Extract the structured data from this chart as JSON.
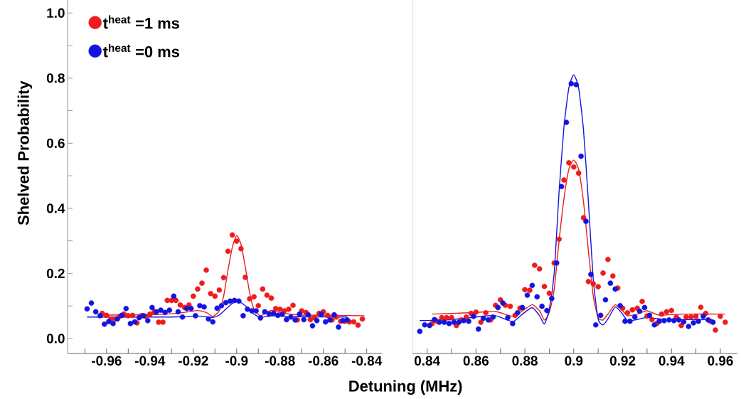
{
  "chart_data": [
    {
      "type": "scatter",
      "xlabel": "Detuning (MHz)",
      "ylabel": "Shelved Probability",
      "legend": "top left",
      "marker": "circle",
      "xlim": [
        -0.978,
        -0.833
      ],
      "ylim": [
        -0.046,
        1.04
      ],
      "xticks": [
        {
          "value": -0.97,
          "label": null
        },
        -0.96,
        {
          "value": -0.95,
          "label": null
        },
        -0.94,
        {
          "value": -0.93,
          "label": null
        },
        -0.92,
        {
          "value": -0.91,
          "label": null
        },
        -0.9,
        {
          "value": -0.89,
          "label": null
        },
        -0.88,
        {
          "value": -0.87,
          "label": null
        },
        -0.86,
        {
          "value": -0.85,
          "label": null
        },
        -0.84
      ],
      "yticks": [
        {
          "value": 0,
          "label": "0.0"
        },
        {
          "value": 0.1,
          "label": null
        },
        {
          "value": 0.2,
          "label": "0.2"
        },
        {
          "value": 0.3,
          "label": null
        },
        {
          "value": 0.4,
          "label": "0.4"
        },
        {
          "value": 0.5,
          "label": null
        },
        {
          "value": 0.6,
          "label": "0.6"
        },
        {
          "value": 0.7,
          "label": null
        },
        {
          "value": 0.8,
          "label": "0.8"
        },
        {
          "value": 0.9,
          "label": null
        },
        {
          "value": 1,
          "label": "1.0"
        }
      ],
      "series": [
        {
          "name": "t$^{heat}$ =1 ms",
          "color": "#ee1c1c",
          "x": [
            -0.962,
            -0.96,
            -0.958,
            -0.956,
            -0.954,
            -0.952,
            -0.95,
            -0.948,
            -0.946,
            -0.944,
            -0.942,
            -0.94,
            -0.938,
            -0.936,
            -0.934,
            -0.932,
            -0.93,
            -0.928,
            -0.926,
            -0.924,
            -0.922,
            -0.92,
            -0.918,
            -0.916,
            -0.914,
            -0.912,
            -0.91,
            -0.908,
            -0.906,
            -0.904,
            -0.902,
            -0.9,
            -0.898,
            -0.896,
            -0.894,
            -0.892,
            -0.89,
            -0.888,
            -0.886,
            -0.884,
            -0.882,
            -0.88,
            -0.878,
            -0.876,
            -0.874,
            -0.872,
            -0.87,
            -0.868,
            -0.866,
            -0.864,
            -0.862,
            -0.86,
            -0.858,
            -0.856,
            -0.854,
            -0.852,
            -0.85,
            -0.848,
            -0.846,
            -0.844,
            -0.842
          ],
          "values": [
            0.077,
            0.071,
            0.06,
            0.06,
            0.068,
            0.075,
            0.07,
            0.071,
            0.048,
            0.07,
            0.068,
            0.075,
            0.082,
            0.05,
            0.05,
            0.117,
            0.117,
            0.117,
            0.103,
            0.095,
            0.103,
            0.13,
            0.152,
            0.17,
            0.21,
            0.138,
            0.13,
            0.149,
            0.187,
            0.268,
            0.318,
            0.299,
            0.276,
            0.188,
            0.122,
            0.128,
            0.101,
            0.152,
            0.133,
            0.124,
            0.092,
            0.09,
            0.085,
            0.09,
            0.102,
            0.057,
            0.085,
            0.08,
            0.058,
            0.064,
            0.077,
            0.082,
            0.071,
            0.057,
            0.066,
            0.053,
            0.053,
            0.051,
            0.051,
            0.041,
            0.06
          ]
        },
        {
          "name": "t$^{heat}$ =0 ms",
          "color": "#1414e0",
          "x": [
            -0.969,
            -0.967,
            -0.965,
            -0.963,
            -0.961,
            -0.959,
            -0.957,
            -0.955,
            -0.953,
            -0.951,
            -0.949,
            -0.947,
            -0.945,
            -0.943,
            -0.941,
            -0.939,
            -0.937,
            -0.935,
            -0.933,
            -0.931,
            -0.929,
            -0.927,
            -0.925,
            -0.923,
            -0.921,
            -0.919,
            -0.917,
            -0.915,
            -0.913,
            -0.911,
            -0.909,
            -0.907,
            -0.905,
            -0.903,
            -0.901,
            -0.899,
            -0.897,
            -0.895,
            -0.893,
            -0.891,
            -0.889,
            -0.887,
            -0.885,
            -0.883,
            -0.881,
            -0.879,
            -0.877,
            -0.875,
            -0.873,
            -0.871,
            -0.869,
            -0.867,
            -0.865,
            -0.863,
            -0.861,
            -0.859,
            -0.857,
            -0.855,
            -0.853,
            -0.851,
            -0.849
          ],
          "values": [
            0.091,
            0.109,
            0.082,
            0.07,
            0.044,
            0.052,
            0.046,
            0.06,
            0.071,
            0.092,
            0.046,
            0.051,
            0.064,
            0.07,
            0.055,
            0.095,
            0.082,
            0.087,
            0.08,
            0.087,
            0.13,
            0.082,
            0.066,
            0.092,
            0.092,
            0.07,
            0.101,
            0.097,
            0.06,
            0.051,
            0.093,
            0.101,
            0.11,
            0.115,
            0.117,
            0.115,
            0.07,
            0.09,
            0.085,
            0.085,
            0.063,
            0.082,
            0.075,
            0.077,
            0.071,
            0.074,
            0.058,
            0.066,
            0.057,
            0.075,
            0.058,
            0.073,
            0.039,
            0.055,
            0.075,
            0.051,
            0.057,
            0.073,
            0.035,
            0.055,
            0.057
          ]
        },
        {
          "type": "line",
          "marker": "none",
          "color": "#ee1c1c",
          "x": [
            -0.962,
            -0.94,
            -0.93,
            -0.922,
            -0.918,
            -0.914,
            -0.911,
            -0.908,
            -0.906,
            -0.904,
            -0.902,
            -0.9,
            -0.898,
            -0.896,
            -0.894,
            -0.892,
            -0.889,
            -0.886,
            -0.883,
            -0.879,
            -0.87,
            -0.841
          ],
          "values": [
            0.072,
            0.073,
            0.076,
            0.082,
            0.086,
            0.08,
            0.068,
            0.085,
            0.13,
            0.21,
            0.28,
            0.316,
            0.29,
            0.22,
            0.14,
            0.09,
            0.07,
            0.082,
            0.086,
            0.078,
            0.072,
            0.07
          ]
        },
        {
          "type": "line",
          "marker": "none",
          "color": "#1414e0",
          "x": [
            -0.969,
            -0.93,
            -0.918,
            -0.911,
            -0.908,
            -0.905,
            -0.902,
            -0.9,
            -0.898,
            -0.895,
            -0.892,
            -0.889,
            -0.882,
            -0.875,
            -0.849
          ],
          "values": [
            0.066,
            0.066,
            0.069,
            0.065,
            0.072,
            0.09,
            0.108,
            0.113,
            0.11,
            0.095,
            0.075,
            0.066,
            0.07,
            0.067,
            0.066
          ]
        }
      ]
    },
    {
      "type": "scatter",
      "tick_labels": "x",
      "marker": "circle",
      "xlim": [
        0.834,
        0.967
      ],
      "ylim": [
        -0.046,
        1.04
      ],
      "xticks": [
        0.84,
        {
          "value": 0.85,
          "label": null
        },
        0.86,
        {
          "value": 0.87,
          "label": null
        },
        0.88,
        {
          "value": 0.89,
          "label": null
        },
        0.9,
        {
          "value": 0.91,
          "label": null
        },
        0.92,
        {
          "value": 0.93,
          "label": null
        },
        0.94,
        {
          "value": 0.95,
          "label": null
        },
        0.96
      ],
      "series": [
        {
          "color": "#ee1c1c",
          "x": [
            0.842,
            0.844,
            0.846,
            0.848,
            0.85,
            0.852,
            0.854,
            0.856,
            0.858,
            0.86,
            0.862,
            0.864,
            0.866,
            0.868,
            0.87,
            0.872,
            0.874,
            0.876,
            0.878,
            0.88,
            0.882,
            0.884,
            0.886,
            0.888,
            0.89,
            0.892,
            0.894,
            0.896,
            0.898,
            0.9,
            0.902,
            0.904,
            0.906,
            0.908,
            0.91,
            0.912,
            0.914,
            0.916,
            0.918,
            0.92,
            0.922,
            0.924,
            0.926,
            0.928,
            0.93,
            0.932,
            0.934,
            0.936,
            0.938,
            0.94,
            0.942,
            0.944,
            0.946,
            0.948,
            0.95,
            0.952,
            0.954,
            0.956,
            0.958,
            0.96,
            0.962
          ],
          "values": [
            0.046,
            0.053,
            0.064,
            0.064,
            0.064,
            0.04,
            0.057,
            0.066,
            0.077,
            0.081,
            0.05,
            0.079,
            0.057,
            0.102,
            0.119,
            0.102,
            0.099,
            0.071,
            0.093,
            0.15,
            0.148,
            0.225,
            0.214,
            0.16,
            0.139,
            0.232,
            0.305,
            0.487,
            0.54,
            0.527,
            0.508,
            0.371,
            0.175,
            0.168,
            0.159,
            0.201,
            0.243,
            0.192,
            0.155,
            0.093,
            0.079,
            0.088,
            0.093,
            0.114,
            0.069,
            0.058,
            0.046,
            0.075,
            0.082,
            0.086,
            0.066,
            0.04,
            0.066,
            0.066,
            0.068,
            0.096,
            0.077,
            0.053,
            0.026,
            0.068,
            0.05
          ]
        },
        {
          "color": "#1414e0",
          "x": [
            0.837,
            0.839,
            0.841,
            0.843,
            0.845,
            0.847,
            0.849,
            0.851,
            0.853,
            0.855,
            0.857,
            0.859,
            0.861,
            0.863,
            0.865,
            0.867,
            0.869,
            0.871,
            0.873,
            0.875,
            0.877,
            0.879,
            0.881,
            0.883,
            0.885,
            0.887,
            0.889,
            0.891,
            0.893,
            0.895,
            0.897,
            0.899,
            0.901,
            0.903,
            0.905,
            0.907,
            0.909,
            0.911,
            0.913,
            0.915,
            0.917,
            0.919,
            0.921,
            0.923,
            0.925,
            0.927,
            0.929,
            0.931,
            0.933,
            0.935,
            0.937,
            0.939,
            0.941,
            0.943,
            0.945,
            0.947,
            0.949,
            0.951,
            0.953,
            0.955,
            0.957
          ],
          "values": [
            0.022,
            0.042,
            0.04,
            0.058,
            0.05,
            0.05,
            0.046,
            0.05,
            0.05,
            0.055,
            0.053,
            0.068,
            0.029,
            0.062,
            0.057,
            0.066,
            0.095,
            0.109,
            0.064,
            0.046,
            0.079,
            0.095,
            0.133,
            0.163,
            0.128,
            0.099,
            0.086,
            0.123,
            0.232,
            0.467,
            0.664,
            0.783,
            0.78,
            0.56,
            0.36,
            0.197,
            0.042,
            0.071,
            0.119,
            0.17,
            0.152,
            0.101,
            0.053,
            0.053,
            0.066,
            0.084,
            0.095,
            0.071,
            0.042,
            0.053,
            0.055,
            0.057,
            0.055,
            0.057,
            0.051,
            0.037,
            0.048,
            0.053,
            0.068,
            0.057,
            0.05
          ]
        },
        {
          "type": "line",
          "marker": "none",
          "color": "#ee1c1c",
          "x": [
            0.842,
            0.85,
            0.86,
            0.868,
            0.875,
            0.879,
            0.883,
            0.886,
            0.888,
            0.89,
            0.892,
            0.894,
            0.896,
            0.898,
            0.9,
            0.902,
            0.904,
            0.906,
            0.908,
            0.91,
            0.912,
            0.914,
            0.917,
            0.92,
            0.922,
            0.926,
            0.93,
            0.935,
            0.945,
            0.962
          ],
          "values": [
            0.075,
            0.077,
            0.08,
            0.083,
            0.068,
            0.085,
            0.104,
            0.085,
            0.057,
            0.08,
            0.15,
            0.3,
            0.43,
            0.52,
            0.548,
            0.52,
            0.42,
            0.27,
            0.13,
            0.064,
            0.057,
            0.075,
            0.104,
            0.085,
            0.07,
            0.075,
            0.085,
            0.072,
            0.075,
            0.075
          ]
        },
        {
          "type": "line",
          "marker": "none",
          "color": "#1414e0",
          "x": [
            0.837,
            0.85,
            0.86,
            0.868,
            0.875,
            0.879,
            0.883,
            0.886,
            0.888,
            0.89,
            0.892,
            0.894,
            0.896,
            0.898,
            0.9,
            0.902,
            0.904,
            0.906,
            0.908,
            0.91,
            0.912,
            0.914,
            0.917,
            0.92,
            0.922,
            0.926,
            0.93,
            0.935,
            0.945,
            0.956
          ],
          "values": [
            0.055,
            0.058,
            0.066,
            0.07,
            0.052,
            0.075,
            0.095,
            0.07,
            0.045,
            0.09,
            0.2,
            0.45,
            0.65,
            0.77,
            0.81,
            0.77,
            0.64,
            0.42,
            0.18,
            0.06,
            0.042,
            0.06,
            0.097,
            0.075,
            0.055,
            0.058,
            0.065,
            0.06,
            0.058,
            0.058
          ]
        }
      ]
    }
  ]
}
